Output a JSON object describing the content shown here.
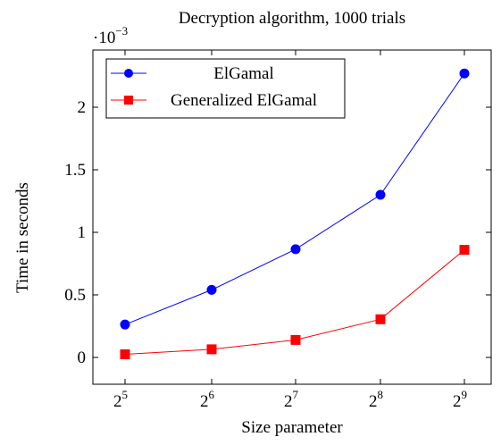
{
  "chart_data": {
    "type": "line",
    "title": "Decryption algorithm, 1000 trials",
    "xlabel": "Size parameter",
    "ylabel": "Time in seconds",
    "y_scale_factor": {
      "base": "·10",
      "exponent": "−3"
    },
    "x_ticks": [
      {
        "base": "2",
        "exp": "5"
      },
      {
        "base": "2",
        "exp": "6"
      },
      {
        "base": "2",
        "exp": "7"
      },
      {
        "base": "2",
        "exp": "8"
      },
      {
        "base": "2",
        "exp": "9"
      }
    ],
    "x": [
      32,
      64,
      128,
      256,
      512
    ],
    "y_ticks": [
      "0",
      "0.5",
      "1",
      "1.5",
      "2"
    ],
    "y_tick_values": [
      0,
      0.5,
      1,
      1.5,
      2
    ],
    "ylim": [
      -0.2,
      2.35
    ],
    "grid": false,
    "legend_position": "top-left",
    "series": [
      {
        "name": "ElGamal",
        "color": "#0000ff",
        "marker": "circle",
        "values": [
          0.263,
          0.54,
          0.865,
          1.3,
          2.27
        ]
      },
      {
        "name": "Generalized ElGamal",
        "color": "#ff0000",
        "marker": "square",
        "values": [
          0.025,
          0.065,
          0.14,
          0.305,
          0.86
        ]
      }
    ]
  }
}
